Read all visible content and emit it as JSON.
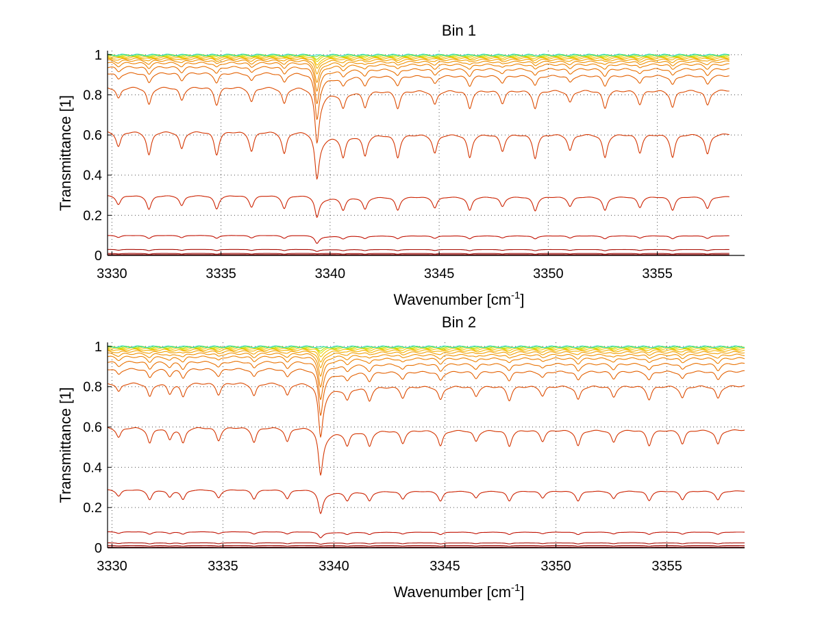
{
  "chart_data": [
    {
      "type": "line",
      "title": "Bin 1",
      "xlabel": "Wavenumber [cm",
      "xlabel_sup": "-1",
      "xlabel_close": "]",
      "ylabel": "Transmittance [1]",
      "xlim": [
        3329.8,
        3359
      ],
      "ylim": [
        0,
        1.02
      ],
      "xticks": [
        3330,
        3335,
        3340,
        3345,
        3350,
        3355
      ],
      "xtick_labels": [
        "3330",
        "3335",
        "3340",
        "3345",
        "3350",
        "3355"
      ],
      "yticks": [
        0,
        0.2,
        0.4,
        0.6,
        0.8,
        1
      ],
      "ytick_labels": [
        "0",
        "0.2",
        "0.4",
        "0.6",
        "0.8",
        "1"
      ],
      "grid": true,
      "x_range": [
        3329.8,
        3358.3
      ],
      "main_dip": {
        "center": 3339.4,
        "width": 0.12,
        "tail": 1.1
      },
      "line_positions": [
        3330.3,
        3331.7,
        3333.2,
        3334.8,
        3336.4,
        3337.9,
        3340.6,
        3341.6,
        3343.1,
        3344.8,
        3346.4,
        3347.9,
        3349.4,
        3351.0,
        3352.6,
        3354.2,
        3355.7,
        3357.3
      ],
      "series_colors": [
        "#8b0000",
        "#9a0500",
        "#a80a00",
        "#c01000",
        "#cc2200",
        "#d43500",
        "#dc4a00",
        "#e36000",
        "#e87000",
        "#ec8000",
        "#ef9000",
        "#f2a000",
        "#f4b000",
        "#f2c400",
        "#e0d800",
        "#b8e000",
        "#80e040",
        "#30e0c0"
      ],
      "series": [
        {
          "baseline": 0.004,
          "main_dip": 0.003,
          "line_depth": 0.002
        },
        {
          "baseline": 0.01,
          "main_dip": 0.008,
          "line_depth": 0.004
        },
        {
          "baseline": 0.03,
          "main_dip": 0.02,
          "line_depth": 0.006
        },
        {
          "baseline": 0.1,
          "main_dip": 0.06,
          "line_depth": 0.015
        },
        {
          "baseline": 0.3,
          "main_dip": 0.19,
          "line_depth": 0.07
        },
        {
          "baseline": 0.62,
          "main_dip": 0.38,
          "line_depth": 0.12
        },
        {
          "baseline": 0.84,
          "main_dip": 0.56,
          "line_depth": 0.09
        },
        {
          "baseline": 0.91,
          "main_dip": 0.68,
          "line_depth": 0.05
        },
        {
          "baseline": 0.94,
          "main_dip": 0.76,
          "line_depth": 0.035
        },
        {
          "baseline": 0.96,
          "main_dip": 0.82,
          "line_depth": 0.025
        },
        {
          "baseline": 0.972,
          "main_dip": 0.86,
          "line_depth": 0.018
        },
        {
          "baseline": 0.98,
          "main_dip": 0.9,
          "line_depth": 0.012
        },
        {
          "baseline": 0.986,
          "main_dip": 0.93,
          "line_depth": 0.008
        },
        {
          "baseline": 0.99,
          "main_dip": 0.95,
          "line_depth": 0.006
        },
        {
          "baseline": 0.994,
          "main_dip": 0.97,
          "line_depth": 0.004
        },
        {
          "baseline": 0.996,
          "main_dip": 0.98,
          "line_depth": 0.003
        },
        {
          "baseline": 0.998,
          "main_dip": 0.99,
          "line_depth": 0.002
        },
        {
          "baseline": 0.999,
          "main_dip": 0.995,
          "line_depth": 0.001
        }
      ]
    },
    {
      "type": "line",
      "title": "Bin 2",
      "xlabel": "Wavenumber [cm",
      "xlabel_sup": "-1",
      "xlabel_close": "]",
      "ylabel": "Transmittance [1]",
      "xlim": [
        3329.8,
        3358.5
      ],
      "ylim": [
        0,
        1.02
      ],
      "xticks": [
        3330,
        3335,
        3340,
        3345,
        3350,
        3355
      ],
      "xtick_labels": [
        "3330",
        "3335",
        "3340",
        "3345",
        "3350",
        "3355"
      ],
      "yticks": [
        0,
        0.2,
        0.4,
        0.6,
        0.8,
        1
      ],
      "ytick_labels": [
        "0",
        "0.2",
        "0.4",
        "0.6",
        "0.8",
        "1"
      ],
      "grid": true,
      "x_range": [
        3329.8,
        3358.5
      ],
      "main_dip": {
        "center": 3339.4,
        "width": 0.12,
        "tail": 1.1
      },
      "line_positions": [
        3330.3,
        3331.7,
        3332.6,
        3333.2,
        3334.8,
        3336.4,
        3337.9,
        3340.6,
        3341.6,
        3343.1,
        3344.8,
        3346.4,
        3347.9,
        3349.4,
        3351.0,
        3352.6,
        3354.2,
        3355.7,
        3357.3
      ],
      "series_colors": [
        "#8b0000",
        "#9a0500",
        "#a80a00",
        "#c01000",
        "#cc2200",
        "#d43500",
        "#dc4a00",
        "#e36000",
        "#e87000",
        "#ec8000",
        "#ef9000",
        "#f2a000",
        "#f4b000",
        "#f2c400",
        "#e0d800",
        "#b8e000",
        "#80e040",
        "#30e0c0"
      ],
      "series": [
        {
          "baseline": 0.004,
          "main_dip": 0.003,
          "line_depth": 0.002
        },
        {
          "baseline": 0.012,
          "main_dip": 0.009,
          "line_depth": 0.004
        },
        {
          "baseline": 0.025,
          "main_dip": 0.018,
          "line_depth": 0.005
        },
        {
          "baseline": 0.08,
          "main_dip": 0.05,
          "line_depth": 0.012
        },
        {
          "baseline": 0.29,
          "main_dip": 0.17,
          "line_depth": 0.05
        },
        {
          "baseline": 0.6,
          "main_dip": 0.36,
          "line_depth": 0.08
        },
        {
          "baseline": 0.82,
          "main_dip": 0.55,
          "line_depth": 0.07
        },
        {
          "baseline": 0.89,
          "main_dip": 0.66,
          "line_depth": 0.045
        },
        {
          "baseline": 0.925,
          "main_dip": 0.74,
          "line_depth": 0.035
        },
        {
          "baseline": 0.95,
          "main_dip": 0.8,
          "line_depth": 0.025
        },
        {
          "baseline": 0.965,
          "main_dip": 0.85,
          "line_depth": 0.018
        },
        {
          "baseline": 0.976,
          "main_dip": 0.89,
          "line_depth": 0.012
        },
        {
          "baseline": 0.984,
          "main_dip": 0.92,
          "line_depth": 0.008
        },
        {
          "baseline": 0.99,
          "main_dip": 0.95,
          "line_depth": 0.006
        },
        {
          "baseline": 0.994,
          "main_dip": 0.97,
          "line_depth": 0.004
        },
        {
          "baseline": 0.996,
          "main_dip": 0.98,
          "line_depth": 0.003
        },
        {
          "baseline": 0.998,
          "main_dip": 0.99,
          "line_depth": 0.002
        },
        {
          "baseline": 0.999,
          "main_dip": 0.995,
          "line_depth": 0.001
        }
      ]
    }
  ]
}
